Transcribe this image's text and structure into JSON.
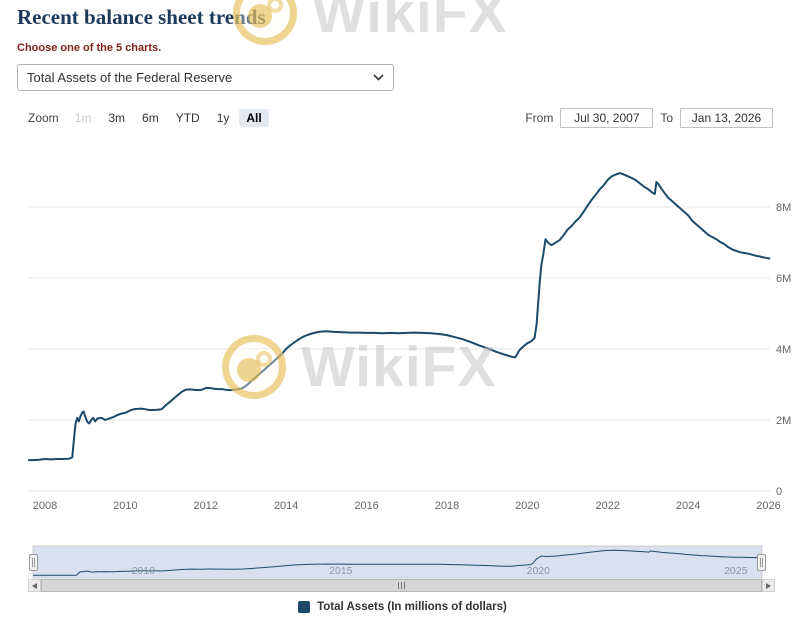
{
  "page": {
    "title": "Recent balance sheet trends",
    "subtitle": "Choose one of the 5 charts."
  },
  "chart_selector": {
    "selected": "Total Assets of the Federal Reserve"
  },
  "range_selector": {
    "zoom_label": "Zoom",
    "buttons": [
      {
        "label": "1m",
        "state": "disabled"
      },
      {
        "label": "3m",
        "state": "normal"
      },
      {
        "label": "6m",
        "state": "normal"
      },
      {
        "label": "YTD",
        "state": "normal"
      },
      {
        "label": "1y",
        "state": "normal"
      },
      {
        "label": "All",
        "state": "selected"
      }
    ],
    "from_label": "From",
    "from_value": "Jul 30, 2007",
    "to_label": "To",
    "to_value": "Jan 13, 2026"
  },
  "watermark": {
    "text": "WikiFX",
    "gold": "#e2b23c"
  },
  "colors": {
    "series": "#1b4a6b",
    "navigator_mask": "rgba(102,133,194,0.25)",
    "navigator_outline": "#cccccc",
    "gridline": "#e6e6e6",
    "axis_label": "#666666"
  },
  "chart_data": {
    "type": "line",
    "title": "",
    "xlabel": "",
    "ylabel": "",
    "x_unit": "year (decimal)",
    "y_unit": "axis units where 1 = 1M (million) millions of dollars",
    "xlim": [
      2007.577,
      2026.036
    ],
    "ylim": [
      0,
      9.6
    ],
    "grid": true,
    "legend_position": "bottom",
    "x_ticks": [
      2008,
      2010,
      2012,
      2014,
      2016,
      2018,
      2020,
      2022,
      2024,
      2026
    ],
    "y_ticks": [
      {
        "value": 0,
        "label": "0"
      },
      {
        "value": 2,
        "label": "2M"
      },
      {
        "value": 4,
        "label": "4M"
      },
      {
        "value": 6,
        "label": "6M"
      },
      {
        "value": 8,
        "label": "8M"
      }
    ],
    "series": [
      {
        "name": "Total Assets (In millions of dollars)",
        "color": "#1b4a6b",
        "points": [
          [
            2007.58,
            0.87
          ],
          [
            2007.7,
            0.87
          ],
          [
            2007.85,
            0.88
          ],
          [
            2008.0,
            0.9
          ],
          [
            2008.15,
            0.89
          ],
          [
            2008.3,
            0.9
          ],
          [
            2008.45,
            0.9
          ],
          [
            2008.6,
            0.91
          ],
          [
            2008.68,
            0.95
          ],
          [
            2008.72,
            1.45
          ],
          [
            2008.76,
            1.9
          ],
          [
            2008.8,
            2.06
          ],
          [
            2008.84,
            1.96
          ],
          [
            2008.88,
            2.1
          ],
          [
            2008.92,
            2.2
          ],
          [
            2008.96,
            2.24
          ],
          [
            2009.0,
            2.1
          ],
          [
            2009.05,
            1.95
          ],
          [
            2009.1,
            1.9
          ],
          [
            2009.15,
            2.0
          ],
          [
            2009.2,
            2.06
          ],
          [
            2009.25,
            1.96
          ],
          [
            2009.3,
            2.04
          ],
          [
            2009.4,
            2.06
          ],
          [
            2009.5,
            2.0
          ],
          [
            2009.6,
            2.04
          ],
          [
            2009.7,
            2.08
          ],
          [
            2009.8,
            2.14
          ],
          [
            2009.9,
            2.18
          ],
          [
            2010.0,
            2.2
          ],
          [
            2010.1,
            2.26
          ],
          [
            2010.2,
            2.3
          ],
          [
            2010.3,
            2.31
          ],
          [
            2010.4,
            2.32
          ],
          [
            2010.5,
            2.3
          ],
          [
            2010.6,
            2.28
          ],
          [
            2010.7,
            2.28
          ],
          [
            2010.8,
            2.29
          ],
          [
            2010.9,
            2.3
          ],
          [
            2011.0,
            2.41
          ],
          [
            2011.1,
            2.5
          ],
          [
            2011.2,
            2.6
          ],
          [
            2011.3,
            2.7
          ],
          [
            2011.4,
            2.79
          ],
          [
            2011.5,
            2.85
          ],
          [
            2011.6,
            2.86
          ],
          [
            2011.7,
            2.85
          ],
          [
            2011.8,
            2.84
          ],
          [
            2011.9,
            2.85
          ],
          [
            2012.0,
            2.9
          ],
          [
            2012.1,
            2.9
          ],
          [
            2012.2,
            2.88
          ],
          [
            2012.3,
            2.87
          ],
          [
            2012.4,
            2.87
          ],
          [
            2012.5,
            2.85
          ],
          [
            2012.6,
            2.84
          ],
          [
            2012.7,
            2.85
          ],
          [
            2012.8,
            2.86
          ],
          [
            2012.9,
            2.89
          ],
          [
            2013.0,
            2.96
          ],
          [
            2013.1,
            3.06
          ],
          [
            2013.2,
            3.16
          ],
          [
            2013.3,
            3.26
          ],
          [
            2013.4,
            3.36
          ],
          [
            2013.5,
            3.46
          ],
          [
            2013.6,
            3.56
          ],
          [
            2013.7,
            3.66
          ],
          [
            2013.8,
            3.76
          ],
          [
            2013.9,
            3.87
          ],
          [
            2014.0,
            4.0
          ],
          [
            2014.1,
            4.1
          ],
          [
            2014.2,
            4.18
          ],
          [
            2014.3,
            4.26
          ],
          [
            2014.4,
            4.33
          ],
          [
            2014.5,
            4.38
          ],
          [
            2014.6,
            4.42
          ],
          [
            2014.7,
            4.45
          ],
          [
            2014.8,
            4.48
          ],
          [
            2014.9,
            4.49
          ],
          [
            2015.0,
            4.5
          ],
          [
            2015.2,
            4.48
          ],
          [
            2015.4,
            4.47
          ],
          [
            2015.6,
            4.46
          ],
          [
            2015.8,
            4.46
          ],
          [
            2016.0,
            4.45
          ],
          [
            2016.2,
            4.45
          ],
          [
            2016.4,
            4.44
          ],
          [
            2016.6,
            4.45
          ],
          [
            2016.8,
            4.44
          ],
          [
            2017.0,
            4.45
          ],
          [
            2017.2,
            4.46
          ],
          [
            2017.4,
            4.45
          ],
          [
            2017.6,
            4.44
          ],
          [
            2017.8,
            4.42
          ],
          [
            2018.0,
            4.39
          ],
          [
            2018.2,
            4.33
          ],
          [
            2018.4,
            4.27
          ],
          [
            2018.6,
            4.19
          ],
          [
            2018.8,
            4.1
          ],
          [
            2019.0,
            4.02
          ],
          [
            2019.2,
            3.93
          ],
          [
            2019.4,
            3.85
          ],
          [
            2019.6,
            3.78
          ],
          [
            2019.7,
            3.76
          ],
          [
            2019.75,
            3.86
          ],
          [
            2019.8,
            3.96
          ],
          [
            2019.9,
            4.07
          ],
          [
            2020.0,
            4.16
          ],
          [
            2020.1,
            4.22
          ],
          [
            2020.18,
            4.31
          ],
          [
            2020.23,
            4.7
          ],
          [
            2020.27,
            5.3
          ],
          [
            2020.31,
            5.9
          ],
          [
            2020.35,
            6.37
          ],
          [
            2020.4,
            6.68
          ],
          [
            2020.45,
            7.09
          ],
          [
            2020.5,
            7.01
          ],
          [
            2020.55,
            6.96
          ],
          [
            2020.6,
            6.92
          ],
          [
            2020.7,
            6.99
          ],
          [
            2020.8,
            7.06
          ],
          [
            2020.9,
            7.2
          ],
          [
            2021.0,
            7.36
          ],
          [
            2021.1,
            7.46
          ],
          [
            2021.2,
            7.59
          ],
          [
            2021.3,
            7.7
          ],
          [
            2021.4,
            7.86
          ],
          [
            2021.5,
            8.04
          ],
          [
            2021.6,
            8.2
          ],
          [
            2021.7,
            8.34
          ],
          [
            2021.8,
            8.49
          ],
          [
            2021.9,
            8.61
          ],
          [
            2022.0,
            8.76
          ],
          [
            2022.1,
            8.86
          ],
          [
            2022.2,
            8.91
          ],
          [
            2022.3,
            8.95
          ],
          [
            2022.4,
            8.91
          ],
          [
            2022.5,
            8.86
          ],
          [
            2022.6,
            8.81
          ],
          [
            2022.7,
            8.75
          ],
          [
            2022.8,
            8.66
          ],
          [
            2022.9,
            8.57
          ],
          [
            2023.0,
            8.5
          ],
          [
            2023.1,
            8.41
          ],
          [
            2023.17,
            8.36
          ],
          [
            2023.21,
            8.7
          ],
          [
            2023.26,
            8.64
          ],
          [
            2023.32,
            8.54
          ],
          [
            2023.4,
            8.41
          ],
          [
            2023.5,
            8.26
          ],
          [
            2023.6,
            8.16
          ],
          [
            2023.7,
            8.06
          ],
          [
            2023.8,
            7.96
          ],
          [
            2023.9,
            7.86
          ],
          [
            2024.0,
            7.76
          ],
          [
            2024.1,
            7.61
          ],
          [
            2024.2,
            7.51
          ],
          [
            2024.3,
            7.41
          ],
          [
            2024.4,
            7.31
          ],
          [
            2024.5,
            7.21
          ],
          [
            2024.6,
            7.15
          ],
          [
            2024.7,
            7.09
          ],
          [
            2024.8,
            7.01
          ],
          [
            2024.9,
            6.95
          ],
          [
            2025.0,
            6.86
          ],
          [
            2025.1,
            6.8
          ],
          [
            2025.2,
            6.76
          ],
          [
            2025.3,
            6.72
          ],
          [
            2025.4,
            6.7
          ],
          [
            2025.5,
            6.68
          ],
          [
            2025.6,
            6.65
          ],
          [
            2025.7,
            6.62
          ],
          [
            2025.8,
            6.6
          ],
          [
            2025.9,
            6.57
          ],
          [
            2026.0,
            6.55
          ],
          [
            2026.04,
            6.54
          ]
        ]
      }
    ]
  },
  "navigator": {
    "labels": [
      2010,
      2015,
      2020,
      2025
    ]
  },
  "legend": {
    "items": [
      {
        "label": "Total Assets (In millions of dollars)",
        "color": "#1b4a6b"
      }
    ]
  }
}
